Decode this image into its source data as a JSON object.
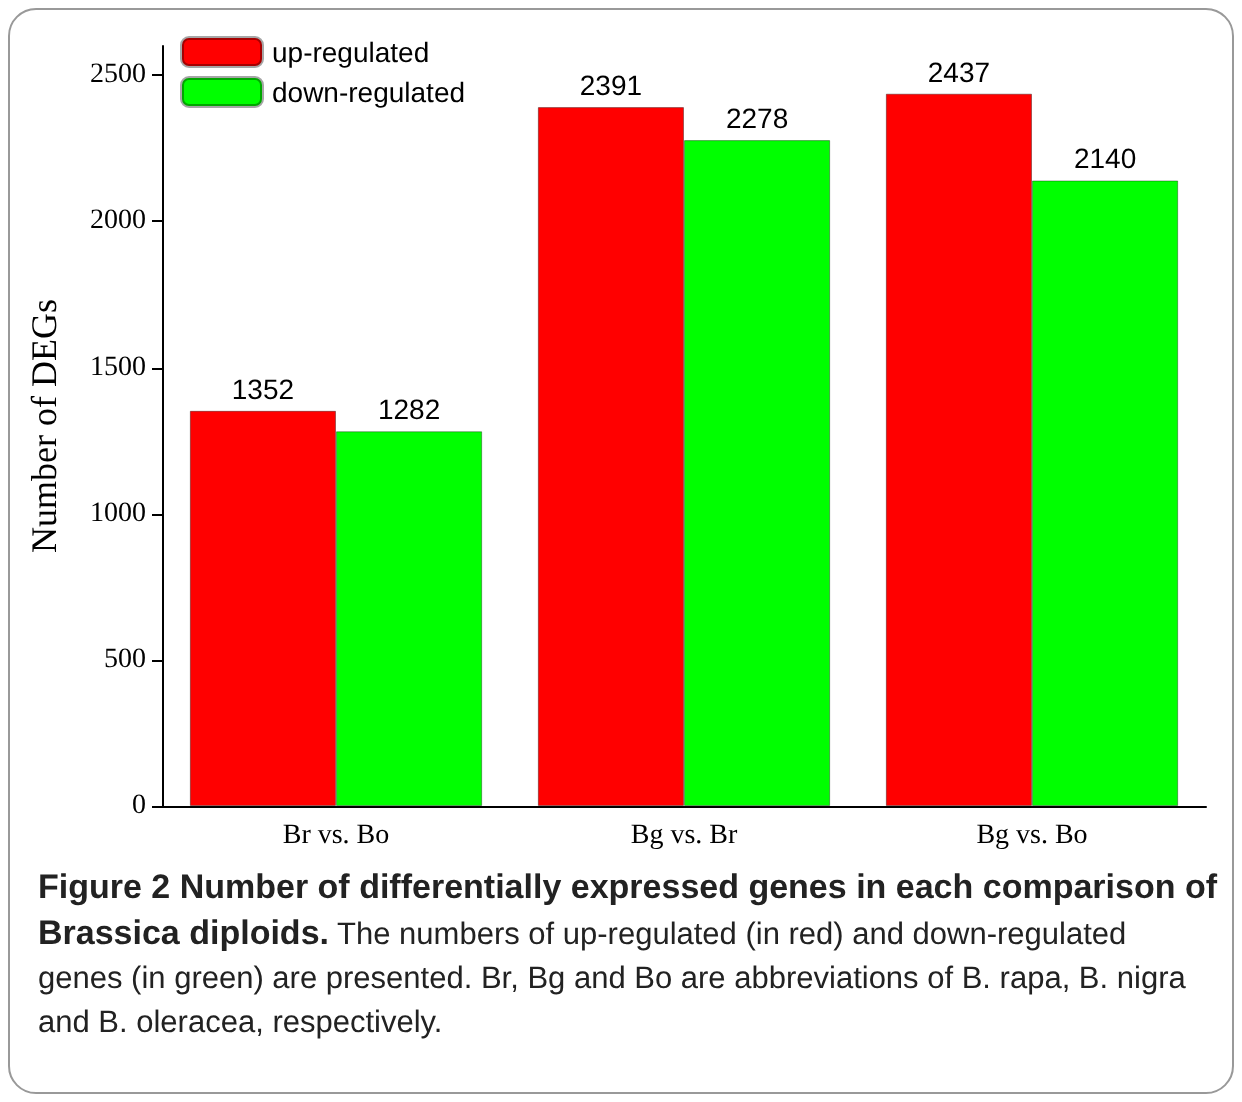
{
  "chart_data": {
    "type": "bar",
    "title": "Figure 2 Number of differentially expressed genes in each comparison of Brassica diploids.",
    "ylabel": "Number of DEGs",
    "annotations": [
      "The numbers of up-regulated (in red) and down-regulated genes (in green) are presented. Br, Bg and Bo are abbreviations of B. rapa, B. nigra and B. oleracea, respectively."
    ],
    "categories": [
      "Br vs. Bo",
      "Bg vs. Br",
      "Bg vs. Bo"
    ],
    "series": [
      {
        "name": "up-regulated",
        "color": "#ff0000",
        "values": [
          1352,
          2391,
          2437
        ]
      },
      {
        "name": "down-regulated",
        "color": "#00ff00",
        "values": [
          1282,
          2278,
          2140
        ]
      }
    ],
    "ylim": [
      0,
      2600
    ],
    "yticks": [
      0,
      500,
      1000,
      1500,
      2000,
      2500
    ],
    "data_labels": true,
    "legend": "top left",
    "grid": false
  }
}
